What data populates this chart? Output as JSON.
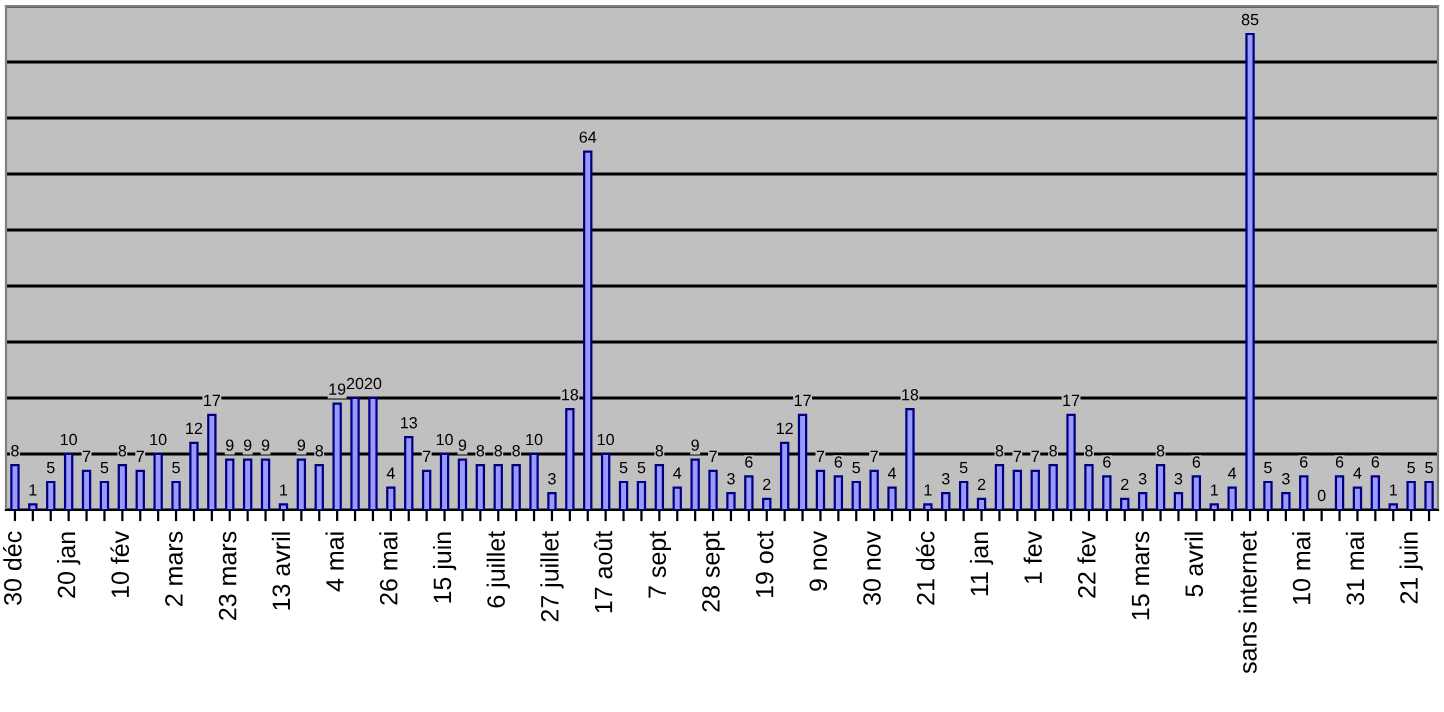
{
  "chart_data": {
    "type": "bar",
    "categories": [
      "30 déc",
      null,
      null,
      "20 jan",
      null,
      null,
      "10 fév",
      null,
      null,
      "2 mars",
      null,
      null,
      "23 mars",
      null,
      null,
      "13 avril",
      null,
      null,
      "4 mai",
      null,
      null,
      "26 mai",
      null,
      null,
      "15 juin",
      null,
      null,
      "6 juillet",
      null,
      null,
      "27 juillet",
      null,
      null,
      "17 août",
      null,
      null,
      "7 sept",
      null,
      null,
      "28 sept",
      null,
      null,
      "19 oct",
      null,
      null,
      "9 nov",
      null,
      null,
      "30 nov",
      null,
      null,
      "21 déc",
      null,
      null,
      "11 jan",
      null,
      null,
      "1 fev",
      null,
      null,
      "22 fev",
      null,
      null,
      "15 mars",
      null,
      null,
      "5 avril",
      null,
      null,
      "sans internet",
      null,
      null,
      "10 mai",
      null,
      null,
      "31 mai",
      null,
      null,
      "21 juin",
      null
    ],
    "values": [
      8,
      1,
      5,
      10,
      7,
      5,
      8,
      7,
      10,
      5,
      12,
      17,
      9,
      9,
      9,
      1,
      9,
      8,
      19,
      20,
      20,
      4,
      13,
      7,
      10,
      9,
      8,
      8,
      8,
      10,
      3,
      18,
      64,
      10,
      5,
      5,
      8,
      4,
      9,
      7,
      3,
      6,
      2,
      12,
      17,
      7,
      6,
      5,
      7,
      4,
      18,
      1,
      3,
      5,
      2,
      8,
      7,
      7,
      8,
      17,
      8,
      6,
      2,
      3,
      8,
      3,
      6,
      1,
      4,
      85,
      5,
      3,
      6,
      0,
      6,
      4,
      6,
      1,
      5,
      5
    ],
    "color": "#9999ff",
    "data_labels": true,
    "ylim": [
      0,
      90
    ],
    "yticks": [
      {
        "value": 0,
        "label": null
      },
      {
        "value": 10,
        "label": null
      },
      {
        "value": 20,
        "label": null
      },
      {
        "value": 30,
        "label": null
      },
      {
        "value": 40,
        "label": null
      },
      {
        "value": 50,
        "label": null
      },
      {
        "value": 60,
        "label": null
      },
      {
        "value": 70,
        "label": null
      },
      {
        "value": 80,
        "label": null
      },
      {
        "value": 90,
        "label": null
      }
    ],
    "grid": "y",
    "tick_labels": "x"
  }
}
